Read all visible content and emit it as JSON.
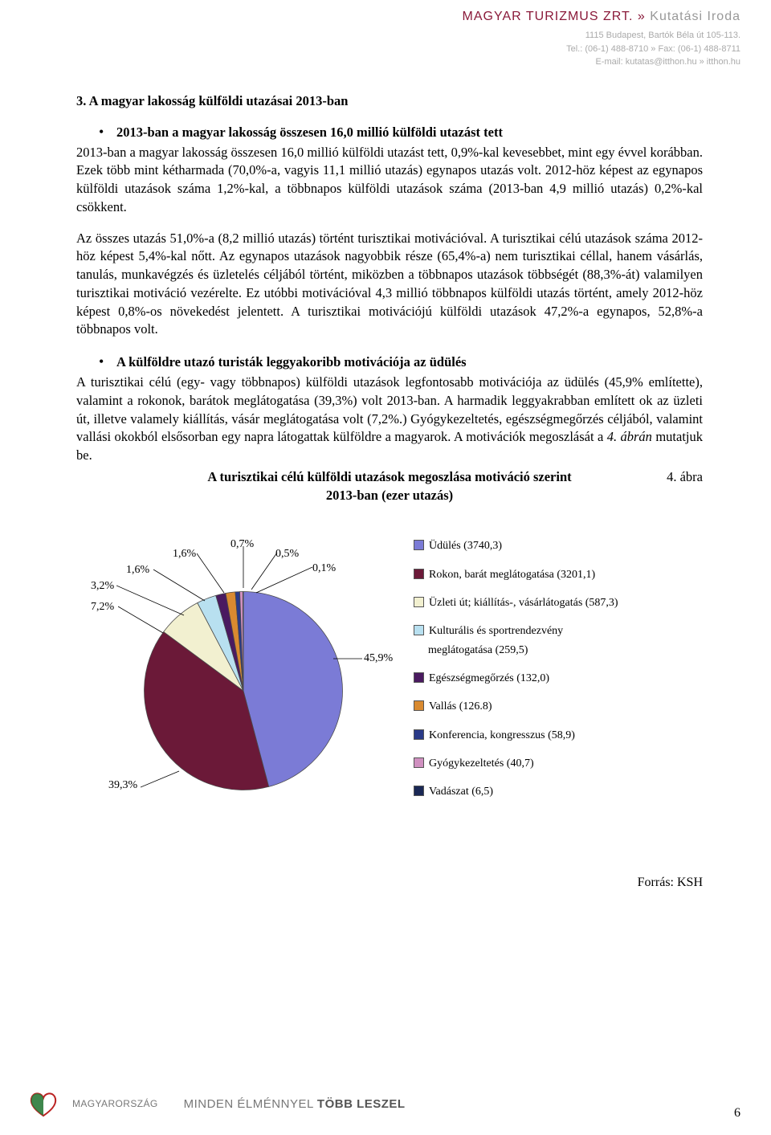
{
  "header": {
    "brand_main": "MAGYAR TURIZMUS ZRT.",
    "brand_sep": "»",
    "brand_sub": "Kutatási Iroda",
    "address": "1115 Budapest, Bartók Béla út 105-113.",
    "tel_fax": "Tel.: (06-1) 488-8710 » Fax: (06-1) 488-8711",
    "email_web": "E-mail: kutatas@itthon.hu » itthon.hu"
  },
  "section": {
    "number_title": "3.  A magyar lakosság külföldi utazásai 2013-ban",
    "bullet1": "2013-ban a magyar lakosság összesen 16,0 millió külföldi utazást tett",
    "para1": "2013-ban a magyar lakosság összesen 16,0 millió külföldi utazást tett, 0,9%-kal kevesebbet, mint egy évvel korábban. Ezek több mint kétharmada (70,0%-a, vagyis 11,1 millió utazás) egynapos utazás volt. 2012-höz képest az egynapos külföldi utazások száma 1,2%-kal, a többnapos külföldi utazások száma (2013-ban 4,9 millió utazás) 0,2%-kal csökkent.",
    "para2": "Az összes utazás 51,0%-a (8,2 millió utazás) történt turisztikai motivációval. A turisztikai célú utazások száma 2012-höz képest 5,4%-kal nőtt. Az egynapos utazások nagyobbik része (65,4%-a) nem turisztikai céllal, hanem vásárlás, tanulás, munkavégzés és üzletelés céljából történt, miközben a többnapos utazások többségét (88,3%-át) valamilyen turisztikai motiváció vezérelte. Ez utóbbi motivációval 4,3 millió többnapos külföldi utazás történt, amely 2012-höz képest 0,8%-os növekedést jelentett. A turisztikai motivációjú külföldi utazások 47,2%-a egynapos, 52,8%-a többnapos volt.",
    "bullet2": "A külföldre utazó turisták leggyakoribb motivációja az üdülés",
    "para3_a": "A turisztikai célú (egy- vagy többnapos) külföldi utazások legfontosabb motivációja az üdülés (45,9% említette), valamint a rokonok, barátok meglátogatása (39,3%) volt 2013-ban. A harmadik leggyakrabban említett ok az üzleti út, illetve valamely kiállítás, vásár meglátogatása volt (7,2%.) Gyógykezeltetés, egészségmegőrzés céljából, valamint vallási okokból elsősorban egy napra látogattak külföldre a magyarok. A motivációk megoszlását a ",
    "para3_ital": "4. ábrán",
    "para3_b": " mutatjuk be.",
    "fig_num": "4.   ábra",
    "fig_title1": "A turisztikai célú külföldi utazások megoszlása motiváció szerint",
    "fig_title2": "2013-ban (ezer utazás)"
  },
  "chart": {
    "type": "pie",
    "background_color": "#ffffff",
    "label_fontsize": 14,
    "border_color": "#4a4a4a",
    "slices": [
      {
        "label": "Üdülés (3740,3)",
        "pct": "45,9%",
        "value": 3740.3,
        "color": "#7b7bd6"
      },
      {
        "label": "Rokon, barát meglátogatása (3201,1)",
        "pct": "39,3%",
        "value": 3201.1,
        "color": "#6b1938"
      },
      {
        "label": "Üzleti út; kiállítás-, vásárlátogatás (587,3)",
        "pct": "7,2%",
        "value": 587.3,
        "color": "#f2f0d0"
      },
      {
        "label": "Kulturális és sportrendezvény",
        "label2": "meglátogatása (259,5)",
        "pct": "3,2%",
        "value": 259.5,
        "color": "#b8e0f0"
      },
      {
        "label": "Egészségmegőrzés (132,0)",
        "pct": "1,6%",
        "value": 132.0,
        "color": "#4a1a60"
      },
      {
        "label": "Vallás (126.8)",
        "pct": "1,6%",
        "value": 126.8,
        "color": "#d98a30"
      },
      {
        "label": "Konferencia, kongresszus (58,9)",
        "pct": "0,7%",
        "value": 58.9,
        "color": "#2a3a88"
      },
      {
        "label": "Gyógykezeltetés (40,7)",
        "pct": "0,5%",
        "value": 40.7,
        "color": "#d090c0"
      },
      {
        "label": "Vadászat (6,5)",
        "pct": "0,1%",
        "value": 6.5,
        "color": "#1a2855"
      }
    ]
  },
  "source": "Forrás: KSH",
  "footer": {
    "logo_text": "MAGYARORSZÁG",
    "slogan_pre": "MINDEN ÉLMÉNNYEL ",
    "slogan_bold": "TÖBB LESZEL",
    "page": "6"
  }
}
